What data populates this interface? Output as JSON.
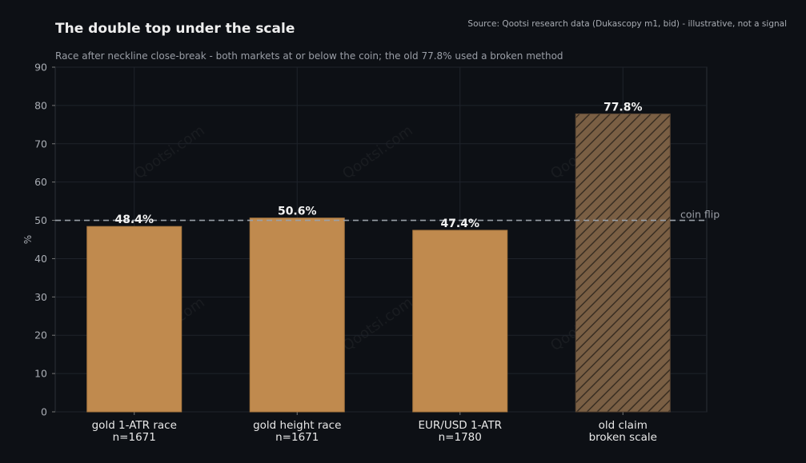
{
  "title": "The double top under the scale",
  "subtitle": "Race after neckline close-break - both markets at or below the coin; the old 77.8% used a broken method",
  "source": "Source: Qootsi research data (Dukascopy m1, bid) - illustrative, not a signal",
  "watermark": "Qootsi.com",
  "chart_data": {
    "type": "bar",
    "categories": [
      [
        "gold 1-ATR race",
        "n=1671"
      ],
      [
        "gold height race",
        "n=1671"
      ],
      [
        "EUR/USD 1-ATR",
        "n=1780"
      ],
      [
        "old claim",
        "broken scale"
      ]
    ],
    "values": [
      48.4,
      50.6,
      47.4,
      77.8
    ],
    "value_labels": [
      "48.4%",
      "50.6%",
      "47.4%",
      "77.8%"
    ],
    "hatched": [
      false,
      false,
      false,
      true
    ],
    "ylabel": "%",
    "ylim": [
      0,
      90
    ],
    "yticks": [
      0,
      10,
      20,
      30,
      40,
      50,
      60,
      70,
      80,
      90
    ],
    "grid": true,
    "reference_line": {
      "value": 50,
      "label": "coin flip"
    },
    "colors": {
      "bar": "#c08a4e",
      "bar_hatched": "#7a5f44",
      "hatch": "#3a2e22",
      "background": "#0d1015",
      "grid": "#1e232b",
      "reference": "#9aa0a8"
    }
  }
}
